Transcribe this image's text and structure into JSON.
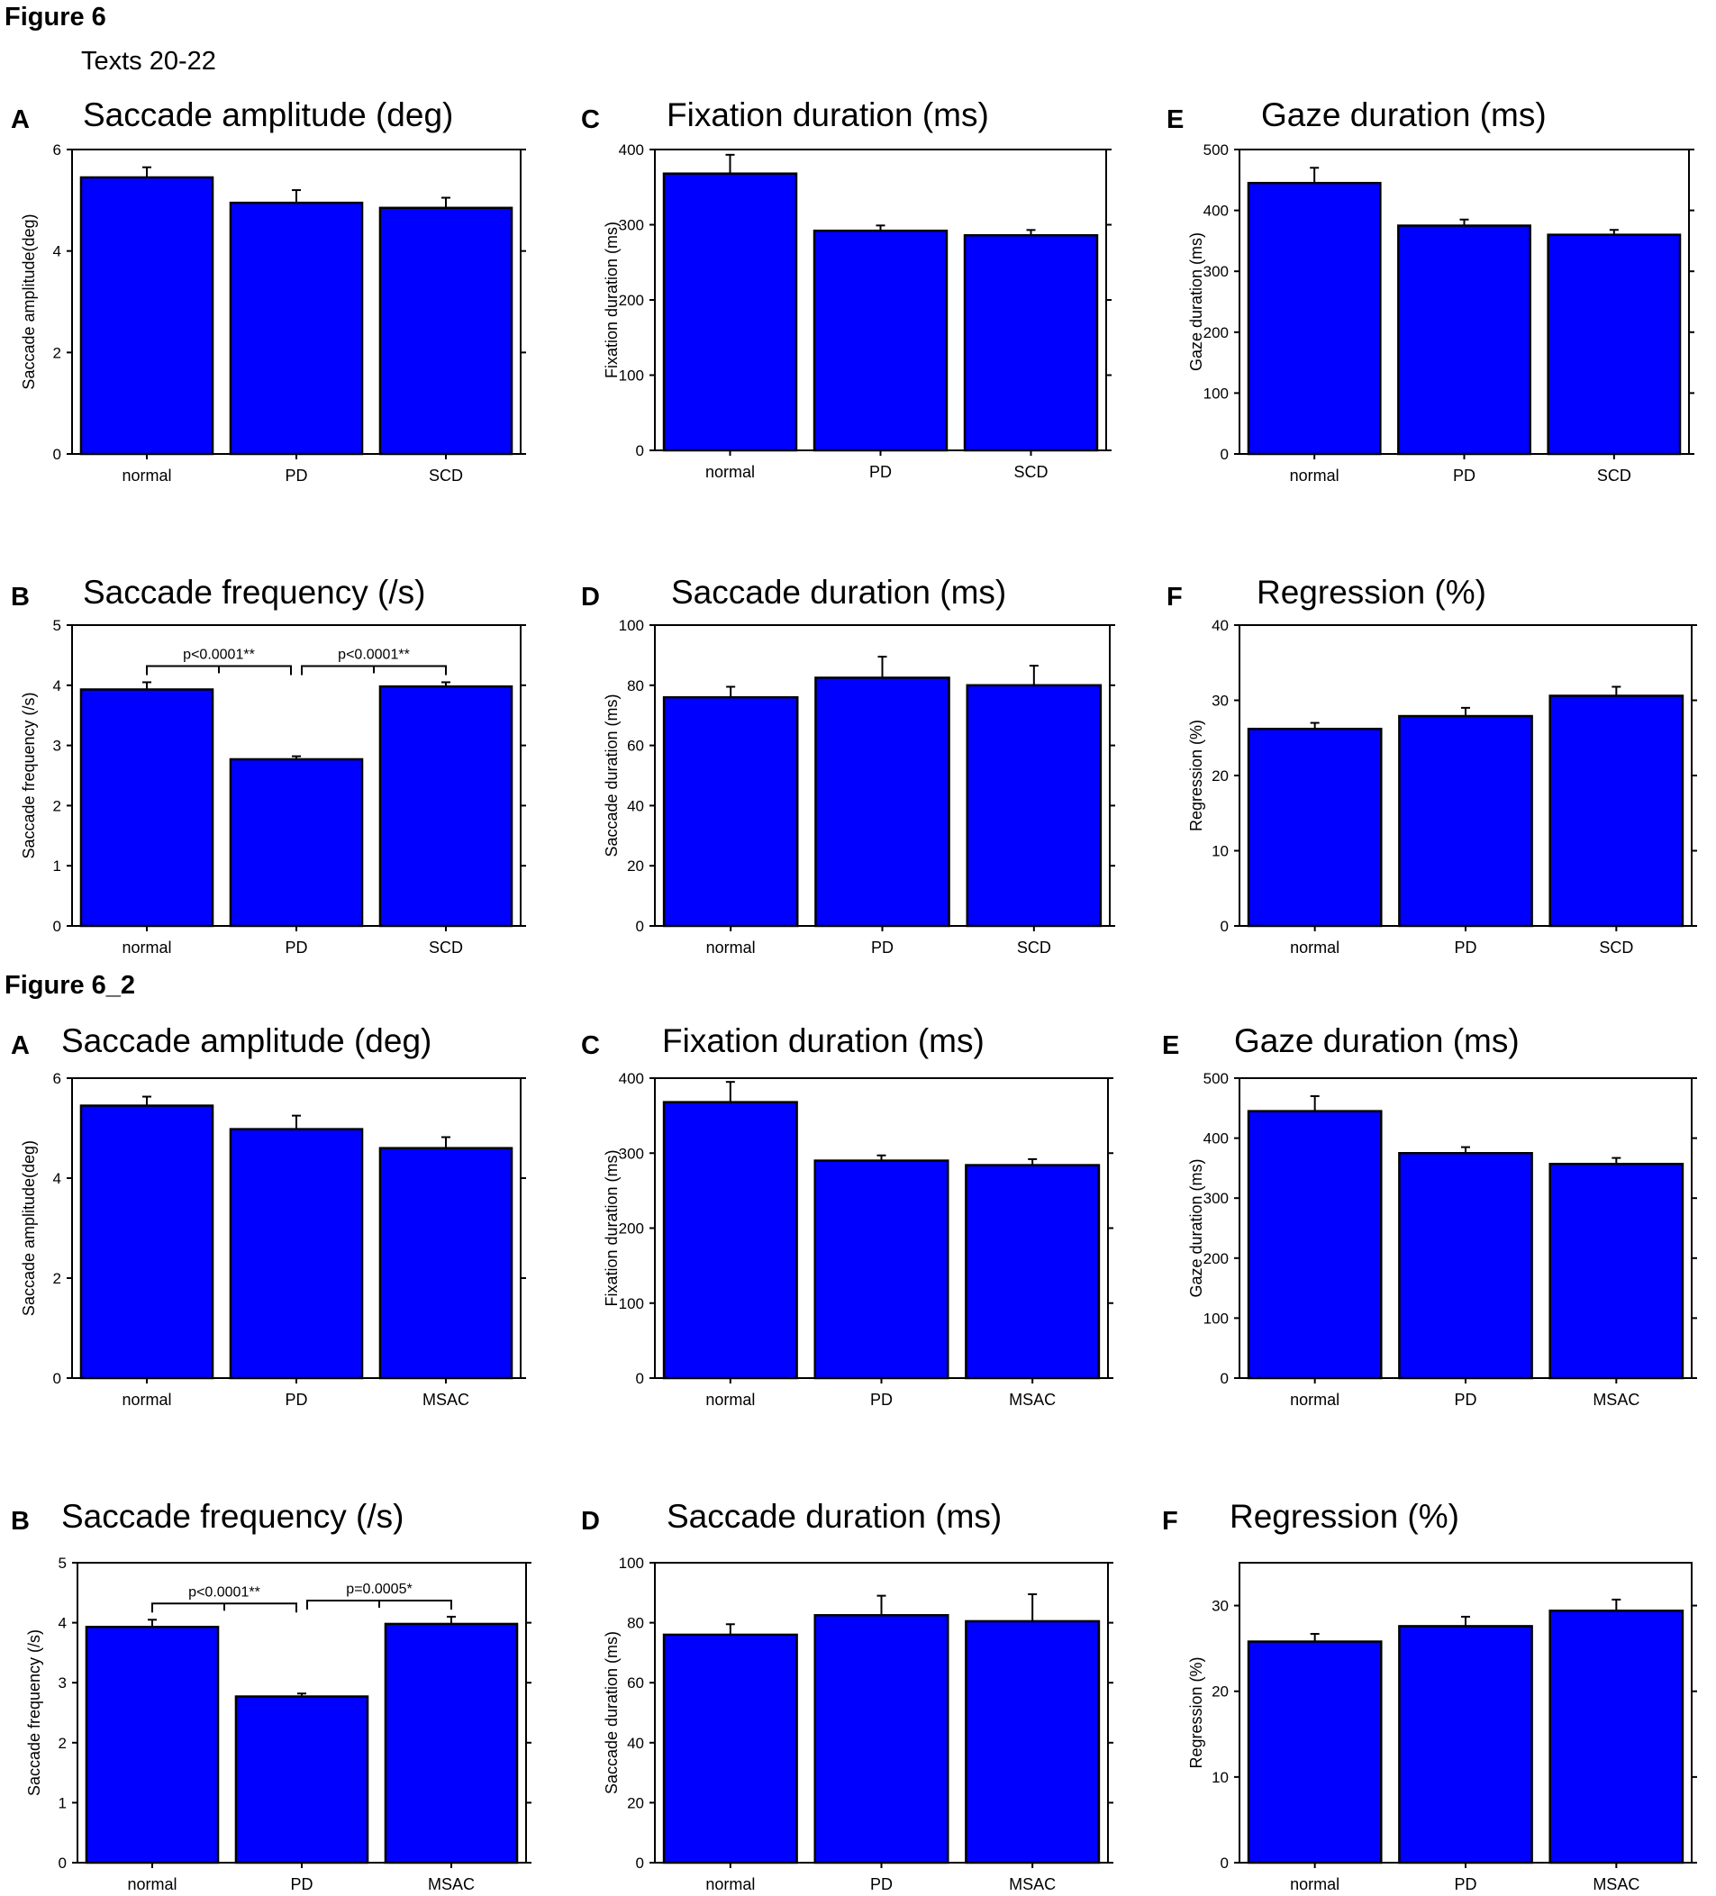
{
  "figure1": {
    "label": "Figure 6",
    "subtitle": "Texts 20-22"
  },
  "figure2": {
    "label": "Figure 6_2"
  },
  "colors": {
    "bar_fill": "#0000ff",
    "bar_stroke": "#000000",
    "background": "#ffffff"
  },
  "chart_data": [
    {
      "id": "f1A",
      "type": "bar",
      "panel_letter": "A",
      "title": "Saccade amplitude (deg)",
      "ylabel": "Saccade amplitude(deg)",
      "xlabel": "",
      "categories": [
        "normal",
        "PD",
        "SCD"
      ],
      "values": [
        5.45,
        4.95,
        4.85
      ],
      "errors": [
        0.2,
        0.25,
        0.2
      ],
      "ylim": [
        0,
        6
      ],
      "yticks": [
        "0",
        "2",
        "4",
        "6"
      ],
      "significance": []
    },
    {
      "id": "f1C",
      "type": "bar",
      "panel_letter": "C",
      "title": "Fixation duration (ms)",
      "ylabel": "Fixation duration (ms)",
      "xlabel": "",
      "categories": [
        "normal",
        "PD",
        "SCD"
      ],
      "values": [
        368,
        292,
        286
      ],
      "errors": [
        25,
        7,
        7
      ],
      "ylim": [
        0,
        400
      ],
      "yticks": [
        "0",
        "100",
        "200",
        "300",
        "400"
      ],
      "significance": []
    },
    {
      "id": "f1E",
      "type": "bar",
      "panel_letter": "E",
      "title": "Gaze duration (ms)",
      "ylabel": "Gaze duration (ms)",
      "xlabel": "",
      "categories": [
        "normal",
        "PD",
        "SCD"
      ],
      "values": [
        445,
        375,
        360
      ],
      "errors": [
        25,
        10,
        8
      ],
      "ylim": [
        0,
        500
      ],
      "yticks": [
        "0",
        "100",
        "200",
        "300",
        "400",
        "500"
      ],
      "significance": []
    },
    {
      "id": "f1B",
      "type": "bar",
      "panel_letter": "B",
      "title": "Saccade frequency (/s)",
      "ylabel": "Saccade frequency (/s)",
      "xlabel": "",
      "categories": [
        "normal",
        "PD",
        "SCD"
      ],
      "values": [
        3.93,
        2.77,
        3.98
      ],
      "errors": [
        0.12,
        0.05,
        0.07
      ],
      "ylim": [
        0,
        5
      ],
      "yticks": [
        "0",
        "1",
        "2",
        "3",
        "4",
        "5"
      ],
      "significance": [
        {
          "from": 0,
          "to": 1,
          "label": "p<0.0001**"
        },
        {
          "from": 1,
          "to": 2,
          "label": "p<0.0001**"
        }
      ]
    },
    {
      "id": "f1D",
      "type": "bar",
      "panel_letter": "D",
      "title": "Saccade duration (ms)",
      "ylabel": "Saccade duration (ms)",
      "xlabel": "",
      "categories": [
        "normal",
        "PD",
        "SCD"
      ],
      "values": [
        76,
        82.5,
        80
      ],
      "errors": [
        3.5,
        7,
        6.5
      ],
      "ylim": [
        0,
        100
      ],
      "yticks": [
        "0",
        "20",
        "40",
        "60",
        "80",
        "100"
      ],
      "significance": []
    },
    {
      "id": "f1F",
      "type": "bar",
      "panel_letter": "F",
      "title": "Regression (%)",
      "ylabel": "Regression (%)",
      "xlabel": "",
      "categories": [
        "normal",
        "PD",
        "SCD"
      ],
      "values": [
        26.2,
        27.9,
        30.6
      ],
      "errors": [
        0.8,
        1.1,
        1.2
      ],
      "ylim": [
        0,
        40
      ],
      "yticks": [
        "0",
        "10",
        "20",
        "30",
        "40"
      ],
      "significance": []
    },
    {
      "id": "f2A",
      "type": "bar",
      "panel_letter": "A",
      "title": "Saccade amplitude (deg)",
      "ylabel": "Saccade amplitude(deg)",
      "xlabel": "",
      "categories": [
        "normal",
        "PD",
        "MSAC"
      ],
      "values": [
        5.45,
        4.98,
        4.6
      ],
      "errors": [
        0.18,
        0.27,
        0.22
      ],
      "ylim": [
        0,
        6
      ],
      "yticks": [
        "0",
        "2",
        "4",
        "6"
      ],
      "significance": []
    },
    {
      "id": "f2C",
      "type": "bar",
      "panel_letter": "C",
      "title": "Fixation duration (ms)",
      "ylabel": "Fixation duration (ms)",
      "xlabel": "",
      "categories": [
        "normal",
        "PD",
        "MSAC"
      ],
      "values": [
        368,
        290,
        284
      ],
      "errors": [
        27,
        7,
        8
      ],
      "ylim": [
        0,
        400
      ],
      "yticks": [
        "0",
        "100",
        "200",
        "300",
        "400"
      ],
      "significance": []
    },
    {
      "id": "f2E",
      "type": "bar",
      "panel_letter": "E",
      "title": "Gaze duration (ms)",
      "ylabel": "Gaze duration (ms)",
      "xlabel": "",
      "categories": [
        "normal",
        "PD",
        "MSAC"
      ],
      "values": [
        445,
        375,
        357
      ],
      "errors": [
        25,
        10,
        10
      ],
      "ylim": [
        0,
        500
      ],
      "yticks": [
        "0",
        "100",
        "200",
        "300",
        "400",
        "500"
      ],
      "significance": []
    },
    {
      "id": "f2B",
      "type": "bar",
      "panel_letter": "B",
      "title": "Saccade frequency (/s)",
      "ylabel": "Saccade frequency (/s)",
      "xlabel": "",
      "categories": [
        "normal",
        "PD",
        "MSAC"
      ],
      "values": [
        3.93,
        2.77,
        3.98
      ],
      "errors": [
        0.12,
        0.05,
        0.12
      ],
      "ylim": [
        0,
        5
      ],
      "yticks": [
        "0",
        "1",
        "2",
        "3",
        "4",
        "5"
      ],
      "significance": [
        {
          "from": 0,
          "to": 1,
          "label": "p<0.0001**"
        },
        {
          "from": 1,
          "to": 2,
          "label": "p=0.0005*"
        }
      ]
    },
    {
      "id": "f2D",
      "type": "bar",
      "panel_letter": "D",
      "title": "Saccade duration (ms)",
      "ylabel": "Saccade duration (ms)",
      "xlabel": "",
      "categories": [
        "normal",
        "PD",
        "MSAC"
      ],
      "values": [
        76,
        82.5,
        80.5
      ],
      "errors": [
        3.5,
        6.5,
        9
      ],
      "ylim": [
        0,
        100
      ],
      "yticks": [
        "0",
        "20",
        "40",
        "60",
        "80",
        "100"
      ],
      "significance": []
    },
    {
      "id": "f2F",
      "type": "bar",
      "panel_letter": "F",
      "title": "Regression (%)",
      "ylabel": "Regression (%)",
      "xlabel": "",
      "categories": [
        "normal",
        "PD",
        "MSAC"
      ],
      "values": [
        25.8,
        27.6,
        29.4
      ],
      "errors": [
        0.9,
        1.1,
        1.3
      ],
      "ylim": [
        0,
        35
      ],
      "yticks": [
        "0",
        "10",
        "20",
        "30"
      ],
      "significance": []
    }
  ]
}
